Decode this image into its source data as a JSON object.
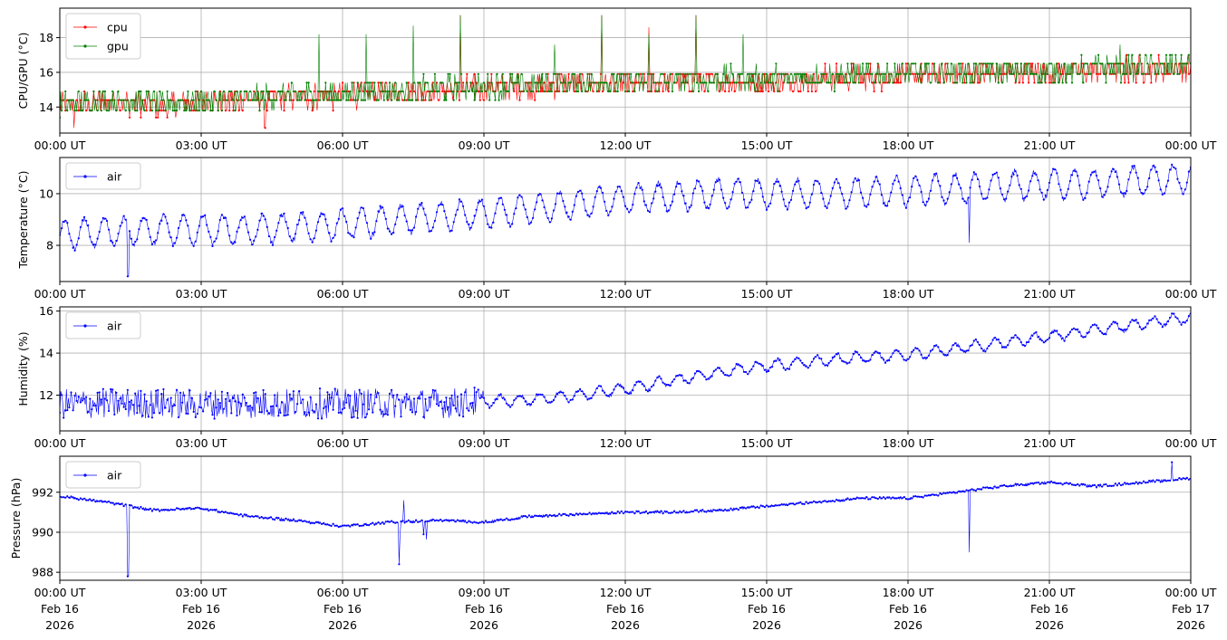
{
  "chart_data": [
    {
      "type": "line",
      "ylabel": "CPU/GPU (°C)",
      "ylim": [
        12.5,
        19.7
      ],
      "yticks": [
        14,
        16,
        18
      ],
      "xlim_hours": [
        0,
        24
      ],
      "xticks": [
        "00:00 UT",
        "03:00 UT",
        "06:00 UT",
        "09:00 UT",
        "12:00 UT",
        "15:00 UT",
        "18:00 UT",
        "21:00 UT",
        "00:00 UT"
      ],
      "grid": true,
      "legend_position": "upper-left",
      "series": [
        {
          "name": "cpu",
          "color": "#ff0000",
          "x_hours": [
            0,
            1,
            2,
            3,
            4,
            5,
            6,
            7,
            8,
            9,
            10,
            11,
            12,
            13,
            14,
            15,
            16,
            17,
            18,
            19,
            20,
            21,
            22,
            23,
            24
          ],
          "y": [
            14.0,
            14.3,
            14.1,
            14.3,
            14.4,
            14.6,
            14.7,
            14.8,
            15.0,
            15.1,
            15.2,
            15.3,
            15.3,
            15.4,
            15.5,
            15.5,
            15.6,
            15.7,
            15.8,
            15.9,
            16.0,
            16.0,
            16.1,
            16.2,
            16.2
          ],
          "spikes": [
            {
              "x_hours": 0.3,
              "y": 12.8
            },
            {
              "x_hours": 4.35,
              "y": 12.8
            },
            {
              "x_hours": 8.5,
              "y": 19.3
            },
            {
              "x_hours": 11.5,
              "y": 19.3
            },
            {
              "x_hours": 12.5,
              "y": 18.6
            },
            {
              "x_hours": 13.5,
              "y": 19.3
            }
          ]
        },
        {
          "name": "gpu",
          "color": "#008000",
          "x_hours": [
            0,
            1,
            2,
            3,
            4,
            5,
            6,
            7,
            8,
            9,
            10,
            11,
            12,
            13,
            14,
            15,
            16,
            17,
            18,
            19,
            20,
            21,
            22,
            23,
            24
          ],
          "y": [
            14.0,
            14.3,
            14.1,
            14.3,
            14.4,
            14.6,
            14.7,
            14.8,
            15.0,
            15.1,
            15.2,
            15.3,
            15.3,
            15.4,
            15.5,
            15.5,
            15.6,
            15.7,
            15.8,
            15.9,
            16.0,
            16.0,
            16.1,
            16.2,
            16.2
          ],
          "spikes": [
            {
              "x_hours": 5.5,
              "y": 18.2
            },
            {
              "x_hours": 6.5,
              "y": 18.2
            },
            {
              "x_hours": 7.5,
              "y": 18.7
            },
            {
              "x_hours": 8.5,
              "y": 19.3
            },
            {
              "x_hours": 10.5,
              "y": 17.6
            },
            {
              "x_hours": 11.5,
              "y": 19.3
            },
            {
              "x_hours": 12.5,
              "y": 18.2
            },
            {
              "x_hours": 13.5,
              "y": 19.3
            },
            {
              "x_hours": 14.5,
              "y": 18.2
            },
            {
              "x_hours": 22.5,
              "y": 17.6
            }
          ]
        }
      ]
    },
    {
      "type": "line",
      "ylabel": "Temperature (°C)",
      "ylim": [
        6.6,
        11.4
      ],
      "yticks": [
        8,
        10
      ],
      "xlim_hours": [
        0,
        24
      ],
      "xticks": [
        "00:00 UT",
        "03:00 UT",
        "06:00 UT",
        "09:00 UT",
        "12:00 UT",
        "15:00 UT",
        "18:00 UT",
        "21:00 UT",
        "00:00 UT"
      ],
      "grid": true,
      "legend_position": "upper-left",
      "series": [
        {
          "name": "air",
          "color": "#0000ff",
          "x_hours": [
            0,
            2,
            4,
            6,
            8,
            10,
            12,
            14,
            16,
            18,
            20,
            22,
            24
          ],
          "y": [
            8.4,
            8.6,
            8.6,
            8.8,
            9.1,
            9.4,
            9.8,
            10.0,
            10.0,
            10.1,
            10.3,
            10.4,
            10.6
          ],
          "spikes": [
            {
              "x_hours": 1.45,
              "y": 6.8
            },
            {
              "x_hours": 19.3,
              "y": 8.1
            }
          ]
        }
      ]
    },
    {
      "type": "line",
      "ylabel": "Humidity (%)",
      "ylim": [
        10.3,
        16.2
      ],
      "yticks": [
        12,
        14,
        16
      ],
      "xlim_hours": [
        0,
        24
      ],
      "xticks": [
        "00:00 UT",
        "03:00 UT",
        "06:00 UT",
        "09:00 UT",
        "12:00 UT",
        "15:00 UT",
        "18:00 UT",
        "21:00 UT",
        "00:00 UT"
      ],
      "grid": true,
      "legend_position": "upper-left",
      "series": [
        {
          "name": "air",
          "color": "#0000ff",
          "x_hours": [
            0,
            2,
            4,
            6,
            8,
            9,
            10,
            11,
            12,
            13,
            14,
            15,
            16,
            17,
            18,
            19,
            20,
            21,
            22,
            23,
            24
          ],
          "y": [
            11.6,
            11.6,
            11.6,
            11.6,
            11.6,
            11.7,
            11.8,
            12.0,
            12.3,
            12.7,
            13.1,
            13.4,
            13.6,
            13.8,
            13.9,
            14.2,
            14.5,
            14.8,
            15.1,
            15.4,
            15.7
          ]
        }
      ]
    },
    {
      "type": "line",
      "ylabel": "Pressure (hPa)",
      "ylim": [
        987.6,
        993.8
      ],
      "yticks": [
        988,
        990,
        992
      ],
      "xlim_hours": [
        0,
        24
      ],
      "xticks": [
        "00:00 UT",
        "03:00 UT",
        "06:00 UT",
        "09:00 UT",
        "12:00 UT",
        "15:00 UT",
        "18:00 UT",
        "21:00 UT",
        "00:00 UT"
      ],
      "xticks_date": [
        "Feb 16",
        "Feb 16",
        "Feb 16",
        "Feb 16",
        "Feb 16",
        "Feb 16",
        "Feb 16",
        "Feb 16",
        "Feb 17"
      ],
      "xticks_year": [
        "2026",
        "2026",
        "2026",
        "2026",
        "2026",
        "2026",
        "2026",
        "2026",
        "2026"
      ],
      "grid": true,
      "legend_position": "upper-left",
      "series": [
        {
          "name": "air",
          "color": "#0000ff",
          "x_hours": [
            0,
            1,
            2,
            3,
            4,
            5,
            6,
            7,
            8,
            9,
            10,
            11,
            12,
            13,
            14,
            15,
            16,
            17,
            18,
            19,
            20,
            21,
            22,
            23,
            24
          ],
          "y": [
            991.8,
            991.5,
            991.1,
            991.2,
            990.8,
            990.6,
            990.3,
            990.5,
            990.6,
            990.5,
            990.8,
            990.9,
            991.0,
            991.0,
            991.1,
            991.3,
            991.5,
            991.7,
            991.7,
            992.0,
            992.3,
            992.5,
            992.3,
            992.5,
            992.7
          ],
          "spikes": [
            {
              "x_hours": 1.45,
              "y": 987.8
            },
            {
              "x_hours": 7.2,
              "y": 988.4
            },
            {
              "x_hours": 7.3,
              "y": 991.6
            },
            {
              "x_hours": 19.3,
              "y": 989.0
            },
            {
              "x_hours": 23.6,
              "y": 993.5
            }
          ]
        }
      ]
    }
  ]
}
